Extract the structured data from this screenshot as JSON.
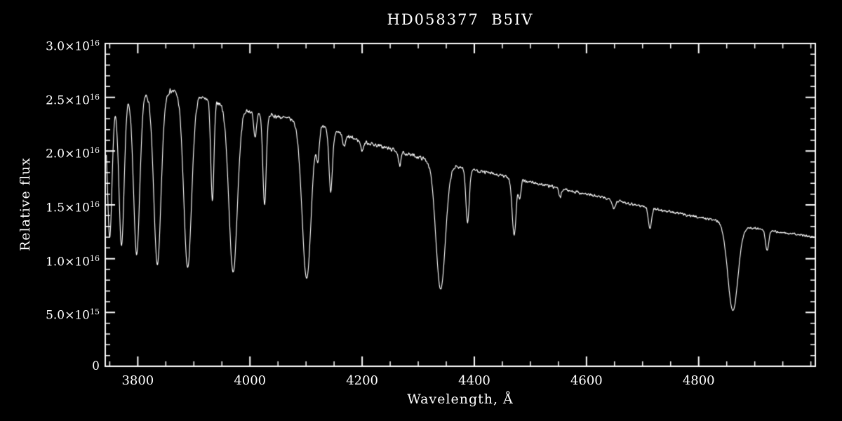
{
  "chart_data": {
    "type": "line",
    "title": "HD058377  B5IV",
    "xlabel": "Wavelength, Å",
    "ylabel": "Relative flux",
    "xlim": [
      3742,
      5008
    ],
    "ylim": [
      0,
      3e+16
    ],
    "grid": false,
    "legend": "none",
    "background": "#000000",
    "axis_color": "#ffffff",
    "line_color": "#ffffff",
    "x_ticks": [
      {
        "value": 3800,
        "label": "3800"
      },
      {
        "value": 4000,
        "label": "4000"
      },
      {
        "value": 4200,
        "label": "4200"
      },
      {
        "value": 4400,
        "label": "4400"
      },
      {
        "value": 4600,
        "label": "4600"
      },
      {
        "value": 4800,
        "label": "4800"
      }
    ],
    "x_minor_step": 50,
    "y_ticks": [
      {
        "value": 0,
        "mantissa": "0",
        "exp": ""
      },
      {
        "value": 5000000000000000.0,
        "mantissa": "5.0×10",
        "exp": "15"
      },
      {
        "value": 1e+16,
        "mantissa": "1.0×10",
        "exp": "16"
      },
      {
        "value": 1.5e+16,
        "mantissa": "1.5×10",
        "exp": "16"
      },
      {
        "value": 2e+16,
        "mantissa": "2.0×10",
        "exp": "16"
      },
      {
        "value": 2.5e+16,
        "mantissa": "2.5×10",
        "exp": "16"
      },
      {
        "value": 3e+16,
        "mantissa": "3.0×10",
        "exp": "16"
      }
    ],
    "y_minor_step": 1000000000000000.0,
    "series": [
      {
        "name": "HD058377 B5IV spectrum",
        "representation": "continuum + gaussian absorption lines + noise",
        "continuum_anchors": [
          [
            3740,
            2.36e+16
          ],
          [
            3765,
            2.46e+16
          ],
          [
            3790,
            2.52e+16
          ],
          [
            3815,
            2.54e+16
          ],
          [
            3845,
            2.565e+16
          ],
          [
            3875,
            2.555e+16
          ],
          [
            3905,
            2.51e+16
          ],
          [
            3935,
            2.465e+16
          ],
          [
            3965,
            2.43e+16
          ],
          [
            4000,
            2.37e+16
          ],
          [
            4040,
            2.33e+16
          ],
          [
            4080,
            2.29e+16
          ],
          [
            4120,
            2.24e+16
          ],
          [
            4160,
            2.16e+16
          ],
          [
            4200,
            2.09e+16
          ],
          [
            4240,
            2.035e+16
          ],
          [
            4280,
            1.975e+16
          ],
          [
            4320,
            1.915e+16
          ],
          [
            4360,
            1.865e+16
          ],
          [
            4400,
            1.825e+16
          ],
          [
            4440,
            1.78e+16
          ],
          [
            4480,
            1.735e+16
          ],
          [
            4520,
            1.69e+16
          ],
          [
            4560,
            1.645e+16
          ],
          [
            4600,
            1.6e+16
          ],
          [
            4640,
            1.555e+16
          ],
          [
            4680,
            1.51e+16
          ],
          [
            4720,
            1.465e+16
          ],
          [
            4760,
            1.425e+16
          ],
          [
            4800,
            1.385e+16
          ],
          [
            4840,
            1.35e+16
          ],
          [
            4880,
            1.3e+16
          ],
          [
            4920,
            1.265e+16
          ],
          [
            4960,
            1.235e+16
          ],
          [
            5010,
            1.2e+16
          ]
        ],
        "absorption_lines": [
          {
            "name": "H13",
            "center": 3734,
            "depth": 0.4,
            "width": 3.5
          },
          {
            "name": "H12",
            "center": 3750,
            "depth": 0.5,
            "width": 4.0
          },
          {
            "name": "H11",
            "center": 3771,
            "depth": 0.55,
            "width": 4.5
          },
          {
            "name": "H10",
            "center": 3798,
            "depth": 0.59,
            "width": 5.5
          },
          {
            "name": "H9",
            "center": 3835,
            "depth": 0.63,
            "width": 6.5
          },
          {
            "name": "H8",
            "center": 3889,
            "depth": 0.64,
            "width": 7.0
          },
          {
            "name": "Ca II K",
            "center": 3933,
            "depth": 0.38,
            "width": 2.8
          },
          {
            "name": "Hε",
            "center": 3970,
            "depth": 0.64,
            "width": 7.5
          },
          {
            "name": "He I 4009",
            "center": 4009,
            "depth": 0.1,
            "width": 2.5
          },
          {
            "name": "He I 4026",
            "center": 4026,
            "depth": 0.36,
            "width": 3.0
          },
          {
            "name": "Hδ",
            "center": 4101,
            "depth": 0.64,
            "width": 8.0
          },
          {
            "name": "He I 4121",
            "center": 4121,
            "depth": 0.12,
            "width": 2.5
          },
          {
            "name": "He I 4144",
            "center": 4144,
            "depth": 0.26,
            "width": 3.0
          },
          {
            "name": "He I 4169",
            "center": 4168,
            "depth": 0.05,
            "width": 2.5
          },
          {
            "name": "weak 4200",
            "center": 4200,
            "depth": 0.04,
            "width": 2.5
          },
          {
            "name": "C II 4267",
            "center": 4267,
            "depth": 0.07,
            "width": 2.2
          },
          {
            "name": "Hγ",
            "center": 4340,
            "depth": 0.62,
            "width": 8.5
          },
          {
            "name": "He I 4388",
            "center": 4388,
            "depth": 0.27,
            "width": 3.0
          },
          {
            "name": "He I 4471",
            "center": 4471,
            "depth": 0.3,
            "width": 3.5
          },
          {
            "name": "Mg II 4481",
            "center": 4481,
            "depth": 0.1,
            "width": 2.2
          },
          {
            "name": "Si III 4553",
            "center": 4553,
            "depth": 0.05,
            "width": 2.2
          },
          {
            "name": "weak 4650",
            "center": 4649,
            "depth": 0.05,
            "width": 2.5
          },
          {
            "name": "He I 4713",
            "center": 4713,
            "depth": 0.13,
            "width": 2.8
          },
          {
            "name": "Hβ",
            "center": 4861,
            "depth": 0.61,
            "width": 9.0
          },
          {
            "name": "He I 4922",
            "center": 4922,
            "depth": 0.15,
            "width": 2.8
          }
        ],
        "noise_relative": 0.007,
        "sample_step": 0.8
      }
    ]
  }
}
